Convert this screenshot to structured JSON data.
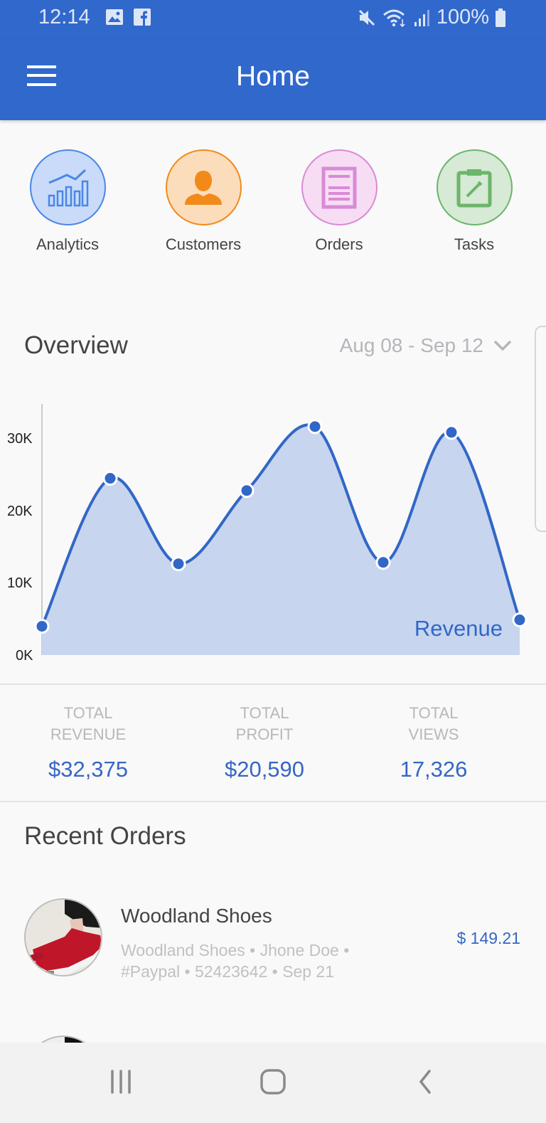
{
  "status_bar": {
    "time": "12:14",
    "left_icons": [
      "image-icon",
      "facebook-icon"
    ],
    "right_icons": [
      "mute-icon",
      "wifi-icon",
      "signal-icon",
      "battery-icon"
    ],
    "battery": "100%"
  },
  "app_bar": {
    "menu_icon": "hamburger-menu-icon",
    "title": "Home"
  },
  "quick_actions": [
    {
      "label": "Analytics",
      "icon": "analytics-chart-icon",
      "color": "#4A86E8",
      "bg": "#C9DBF8"
    },
    {
      "label": "Customers",
      "icon": "person-icon",
      "color": "#F28A1A",
      "bg": "#FCDDBB"
    },
    {
      "label": "Orders",
      "icon": "document-icon",
      "color": "#DA8AD6",
      "bg": "#F6DDF4"
    },
    {
      "label": "Tasks",
      "icon": "clipboard-edit-icon",
      "color": "#6CB56A",
      "bg": "#D6EAD5"
    }
  ],
  "overview": {
    "title": "Overview",
    "date_range": "Aug 08 - Sep 12",
    "dropdown_icon": "chevron-down-icon"
  },
  "chart_data": {
    "type": "area",
    "title": "Overview",
    "series": [
      {
        "name": "Revenue",
        "values": [
          4.0,
          24.6,
          12.7,
          22.9,
          31.8,
          12.9,
          31.0,
          4.9
        ]
      }
    ],
    "x": [
      1,
      2,
      3,
      4,
      5,
      6,
      7,
      8
    ],
    "y_ticks": [
      "0K",
      "10K",
      "20K",
      "30K"
    ],
    "ylim": [
      0,
      35
    ],
    "units": "thousands",
    "xlabel": "",
    "ylabel": "",
    "grid": false,
    "legend_position": "inside-bottom-right",
    "color": "#3167C7",
    "fill": "#C8D5EF"
  },
  "stats": [
    {
      "label_line1": "TOTAL",
      "label_line2": "REVENUE",
      "value": "$32,375"
    },
    {
      "label_line1": "TOTAL",
      "label_line2": "PROFIT",
      "value": "$20,590"
    },
    {
      "label_line1": "TOTAL",
      "label_line2": "VIEWS",
      "value": "17,326"
    }
  ],
  "recent_orders": {
    "title": "Recent Orders",
    "items": [
      {
        "name": "Woodland Shoes",
        "meta_line1": "Woodland Shoes • Jhone Doe •",
        "meta_line2": "#Paypal • 52423642 • Sep 21",
        "price": "$ 149.21"
      }
    ]
  },
  "nav_bar": {
    "buttons": [
      "recent-apps-icon",
      "home-icon",
      "back-icon"
    ]
  }
}
